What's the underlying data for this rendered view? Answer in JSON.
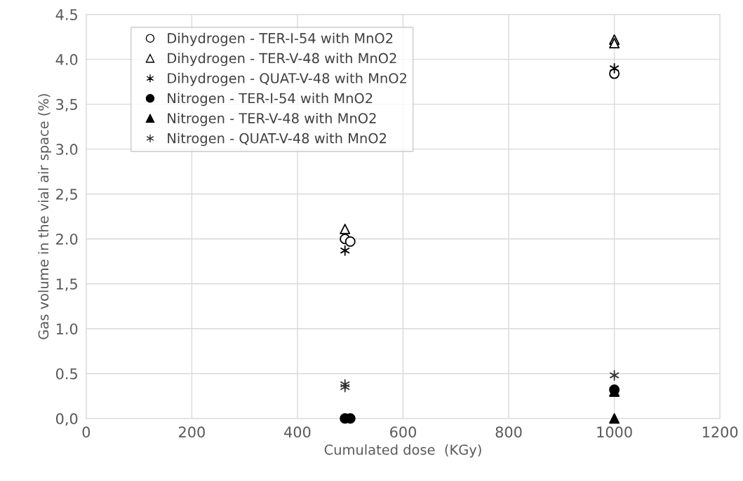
{
  "chart_data": {
    "type": "scatter",
    "xlabel": "Cumulated dose  (KGy)",
    "ylabel": "Gas volume in the vial air space (%)",
    "xlim": [
      0,
      1200
    ],
    "xticks": [
      0,
      200,
      400,
      600,
      800,
      1000,
      1200
    ],
    "ylim": [
      0,
      4.5
    ],
    "yticks": [
      {
        "value": 0,
        "label": "0,0"
      },
      {
        "value": 0.5,
        "label": "0.5"
      },
      {
        "value": 1,
        "label": "1.0"
      },
      {
        "value": 1.5,
        "label": "1,5"
      },
      {
        "value": 2,
        "label": "2.0"
      },
      {
        "value": 2.5,
        "label": "2,5"
      },
      {
        "value": 3,
        "label": "3.0"
      },
      {
        "value": 3.5,
        "label": "3,5"
      },
      {
        "value": 4,
        "label": "4.0"
      },
      {
        "value": 4.5,
        "label": "4.5"
      }
    ],
    "grid": true,
    "legend": "top left",
    "series": [
      {
        "name": "Dihydrogen - TER-I-54 with MnO2",
        "color": "#ffffff",
        "marker": "circle",
        "x": [
          490,
          500,
          1000
        ],
        "values": [
          2.0,
          1.97,
          3.84
        ]
      },
      {
        "name": "Dihydrogen - TER-V-48 with MnO2",
        "color": "#ffffff",
        "marker": "triangle",
        "x": [
          490,
          1000,
          1000
        ],
        "values": [
          2.11,
          4.22,
          4.18
        ]
      },
      {
        "name": "Dihydrogen - QUAT-V-48 with MnO2",
        "color": "#000000",
        "marker": "cross",
        "x": [
          490,
          1000
        ],
        "values": [
          1.87,
          3.9
        ]
      },
      {
        "name": "Nitrogen - TER-I-54 with MnO2",
        "color": "#000000",
        "marker": "circle",
        "x": [
          490,
          500,
          1000
        ],
        "values": [
          0,
          0,
          0.32
        ]
      },
      {
        "name": "Nitrogen - TER-V-48 with MnO2",
        "color": "#000000",
        "marker": "triangle",
        "x": [
          1000,
          1000
        ],
        "values": [
          0.3,
          0
        ]
      },
      {
        "name": "Nitrogen - QUAT-V-48 with MnO2",
        "color": "#333333",
        "marker": "cross",
        "x": [
          490,
          490,
          1000
        ],
        "values": [
          0.35,
          0.38,
          0.48
        ]
      }
    ]
  }
}
